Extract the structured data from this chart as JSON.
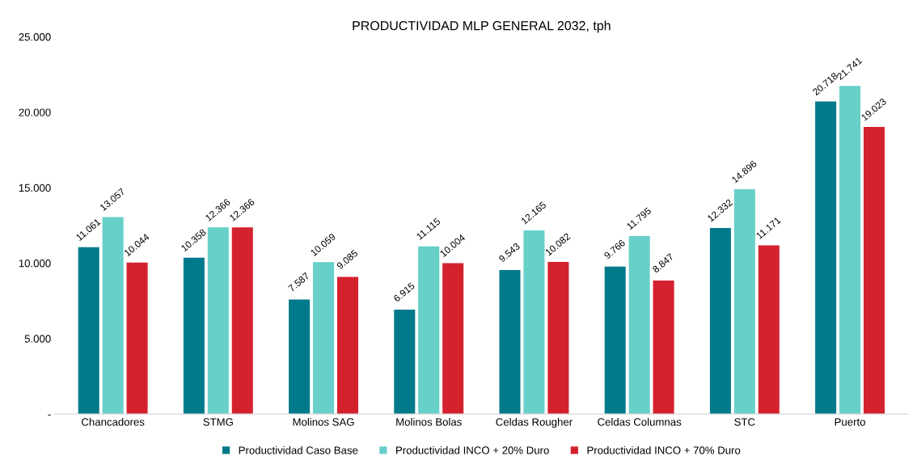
{
  "chart_data": {
    "type": "bar",
    "title": "PRODUCTIVIDAD MLP GENERAL 2032, tph",
    "categories": [
      "Chancadores",
      "STMG",
      "Molinos SAG",
      "Molinos Bolas",
      "Celdas Rougher",
      "Celdas Columnas",
      "STC",
      "Puerto"
    ],
    "series": [
      {
        "name": "Productividad Caso Base",
        "color": "#007a8a",
        "values": [
          11061,
          10358,
          7587,
          6915,
          9543,
          9766,
          12332,
          20718
        ],
        "value_labels": [
          "11.061",
          "10.358",
          "7.587",
          "6.915",
          "9.543",
          "9.766",
          "12.332",
          "20.718"
        ]
      },
      {
        "name": "Productividad INCO + 20% Duro",
        "color": "#66d0c9",
        "values": [
          13057,
          12366,
          10059,
          11115,
          12165,
          11795,
          14896,
          21741
        ],
        "value_labels": [
          "13.057",
          "12.366",
          "10.059",
          "11.115",
          "12.165",
          "11.795",
          "14.896",
          "21.741"
        ]
      },
      {
        "name": "Productividad INCO + 70% Duro",
        "color": "#d3222e",
        "values": [
          10044,
          12366,
          9085,
          10004,
          10082,
          8847,
          11171,
          19023
        ],
        "value_labels": [
          "10.044",
          "12.366",
          "9.085",
          "10.004",
          "10.082",
          "8.847",
          "11.171",
          "19.023"
        ]
      }
    ],
    "ylim": [
      0,
      25000
    ],
    "yticks": [
      {
        "value": 0,
        "label": "-"
      },
      {
        "value": 5000,
        "label": "5.000"
      },
      {
        "value": 10000,
        "label": "10.000"
      },
      {
        "value": 15000,
        "label": "15.000"
      },
      {
        "value": 20000,
        "label": "20.000"
      },
      {
        "value": 25000,
        "label": "25.000"
      }
    ],
    "legend": "bottom"
  }
}
